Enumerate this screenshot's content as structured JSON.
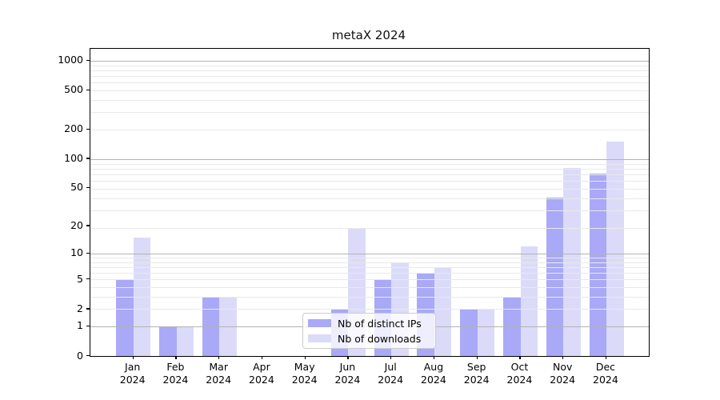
{
  "chart_data": {
    "type": "bar",
    "title": "metaX 2024",
    "categories": [
      "Jan 2024",
      "Feb 2024",
      "Mar 2024",
      "Apr 2024",
      "May 2024",
      "Jun 2024",
      "Jul 2024",
      "Aug 2024",
      "Sep 2024",
      "Oct 2024",
      "Nov 2024",
      "Dec 2024"
    ],
    "months": [
      "Jan",
      "Feb",
      "Mar",
      "Apr",
      "May",
      "Jun",
      "Jul",
      "Aug",
      "Sep",
      "Oct",
      "Nov",
      "Dec"
    ],
    "year": "2024",
    "series": [
      {
        "name": "Nb of distinct IPs",
        "color": "#a9a9f7",
        "values": [
          5,
          1,
          3,
          0,
          0,
          2,
          5,
          6,
          2,
          3,
          40,
          70
        ]
      },
      {
        "name": "Nb of downloads",
        "color": "#dbdbf9",
        "values": [
          15,
          1,
          3,
          0,
          0,
          19,
          8,
          7,
          2,
          12,
          80,
          150
        ]
      }
    ],
    "yscale": "log1p",
    "ylim": [
      0,
      1320
    ],
    "yticks": [
      0,
      1,
      2,
      5,
      10,
      20,
      50,
      100,
      200,
      500,
      1000
    ],
    "grid": {
      "on": true,
      "major_at": [
        1,
        10,
        100,
        1000
      ],
      "minor": "log decades over bars"
    },
    "legend_position": "inside bottom center",
    "bar_layout": "grouped pairs, IPs left / downloads right"
  }
}
